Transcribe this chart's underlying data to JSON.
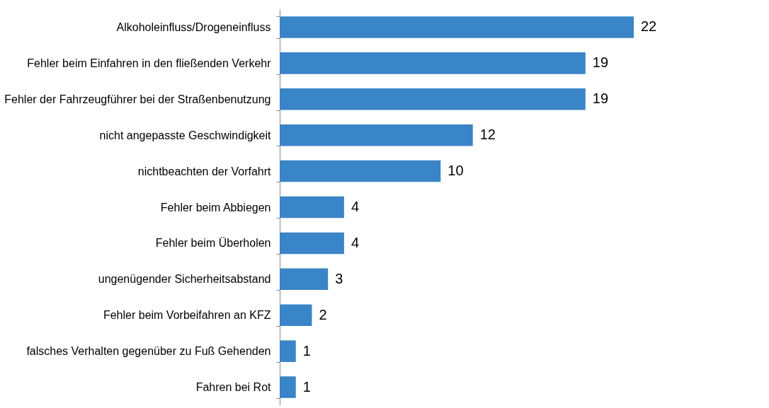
{
  "chart_data": {
    "type": "bar",
    "orientation": "horizontal",
    "categories": [
      "Alkoholeinfluss/Drogeneinfluss",
      "Fehler beim Einfahren in den fließenden Verkehr",
      "Fehler der Fahrzeugführer bei der Straßenbenutzung",
      "nicht angepasste Geschwindigkeit",
      "nichtbeachten der Vorfahrt",
      "Fehler beim Abbiegen",
      "Fehler beim Überholen",
      "ungenügender Sicherheitsabstand",
      "Fehler beim Vorbeifahren an KFZ",
      "falsches Verhalten gegenüber zu Fuß Gehenden",
      "Fahren bei Rot"
    ],
    "values": [
      22,
      19,
      19,
      12,
      10,
      4,
      4,
      3,
      2,
      1,
      1
    ],
    "color": "#3a84c8",
    "data_labels": true,
    "tick_labels": "y"
  }
}
